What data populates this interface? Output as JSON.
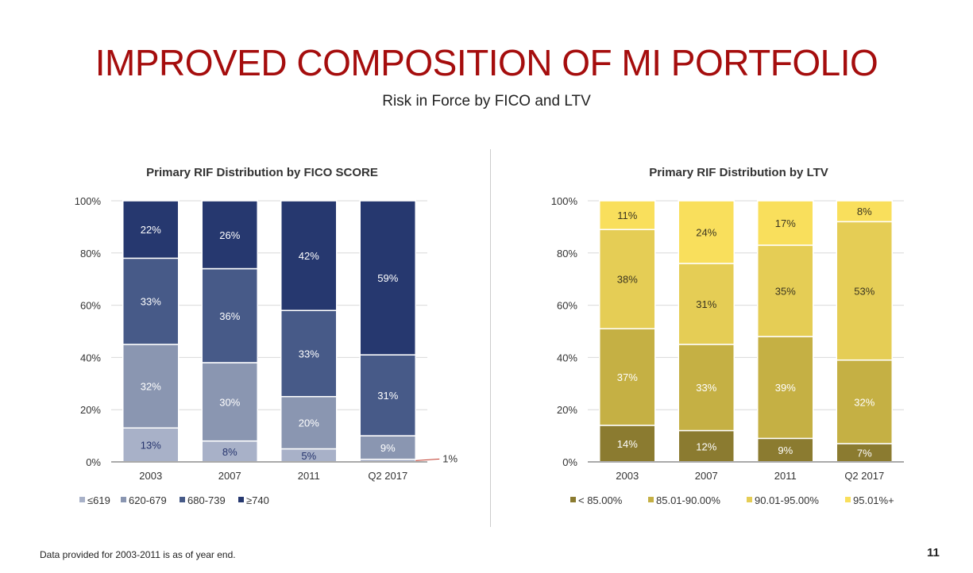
{
  "slide": {
    "title": "IMPROVED COMPOSITION OF MI PORTFOLIO",
    "subtitle": "Risk in Force by FICO and LTV",
    "footnote": "Data provided for 2003-2011 is as of year end.",
    "page_number": "11"
  },
  "chart_data": [
    {
      "type": "bar",
      "stacked": true,
      "title": "Primary RIF Distribution by FICO SCORE",
      "categories": [
        "2003",
        "2007",
        "2011",
        "Q2 2017"
      ],
      "ylim": [
        0,
        100
      ],
      "yticks": [
        "0%",
        "20%",
        "40%",
        "60%",
        "80%",
        "100%"
      ],
      "grid": true,
      "legend_position": "bottom-left",
      "series": [
        {
          "name": "≤619",
          "color": "#a8b1c8",
          "label_color": "#26356e",
          "values": [
            13,
            8,
            5,
            1
          ],
          "labels": [
            "13%",
            "8%",
            "5%",
            "1%"
          ]
        },
        {
          "name": "620-679",
          "color": "#8a96b1",
          "label_color": "#ffffff",
          "values": [
            32,
            30,
            20,
            9
          ],
          "labels": [
            "32%",
            "30%",
            "20%",
            "9%"
          ]
        },
        {
          "name": "680-739",
          "color": "#475a88",
          "label_color": "#ffffff",
          "values": [
            33,
            36,
            33,
            31
          ],
          "labels": [
            "33%",
            "36%",
            "33%",
            "31%"
          ]
        },
        {
          "name": "≥740",
          "color": "#26386f",
          "label_color": "#ffffff",
          "values": [
            22,
            26,
            42,
            59
          ],
          "labels": [
            "22%",
            "26%",
            "42%",
            "59%"
          ]
        }
      ]
    },
    {
      "type": "bar",
      "stacked": true,
      "title": "Primary RIF Distribution by LTV",
      "categories": [
        "2003",
        "2007",
        "2011",
        "Q2 2017"
      ],
      "ylim": [
        0,
        100
      ],
      "yticks": [
        "0%",
        "20%",
        "40%",
        "60%",
        "80%",
        "100%"
      ],
      "grid": true,
      "legend_position": "bottom-left",
      "series": [
        {
          "name": "< 85.00%",
          "color": "#8b7b30",
          "label_color": "#ffffff",
          "values": [
            14,
            12,
            9,
            7
          ],
          "labels": [
            "14%",
            "12%",
            "9%",
            "7%"
          ]
        },
        {
          "name": "85.01-90.00%",
          "color": "#c5b044",
          "label_color": "#ffffff",
          "values": [
            37,
            33,
            39,
            32
          ],
          "labels": [
            "37%",
            "33%",
            "39%",
            "32%"
          ]
        },
        {
          "name": "90.01-95.00%",
          "color": "#e5cd55",
          "label_color": "#3b3520",
          "values": [
            38,
            31,
            35,
            53
          ],
          "labels": [
            "38%",
            "31%",
            "35%",
            "53%"
          ]
        },
        {
          "name": "95.01%+",
          "color": "#f9df5c",
          "label_color": "#3b3520",
          "values": [
            11,
            24,
            17,
            8
          ],
          "labels": [
            "11%",
            "24%",
            "17%",
            "8%"
          ]
        }
      ]
    }
  ]
}
